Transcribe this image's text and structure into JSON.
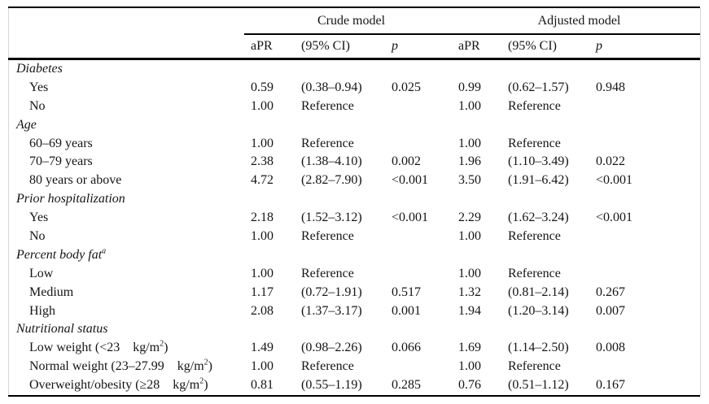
{
  "table": {
    "group_headers": {
      "crude": "Crude model",
      "adjusted": "Adjusted model"
    },
    "col_headers": {
      "apr": "aPR",
      "ci": "(95% CI)",
      "p": "p"
    },
    "rows": [
      {
        "type": "section",
        "pre": "Diabetes",
        "sup": "",
        "post": "",
        "crude_apr": "",
        "crude_ci": "",
        "crude_p": "",
        "adj_apr": "",
        "adj_ci": "",
        "adj_p": ""
      },
      {
        "type": "item",
        "pre": "Yes",
        "sup": "",
        "post": "",
        "crude_apr": "0.59",
        "crude_ci": "(0.38–0.94)",
        "crude_p": "0.025",
        "adj_apr": "0.99",
        "adj_ci": "(0.62–1.57)",
        "adj_p": "0.948"
      },
      {
        "type": "item",
        "pre": "No",
        "sup": "",
        "post": "",
        "crude_apr": "1.00",
        "crude_ci": "Reference",
        "crude_p": "",
        "adj_apr": "1.00",
        "adj_ci": "Reference",
        "adj_p": ""
      },
      {
        "type": "section",
        "pre": "Age",
        "sup": "",
        "post": "",
        "crude_apr": "",
        "crude_ci": "",
        "crude_p": "",
        "adj_apr": "",
        "adj_ci": "",
        "adj_p": ""
      },
      {
        "type": "item",
        "pre": "60–69 years",
        "sup": "",
        "post": "",
        "crude_apr": "1.00",
        "crude_ci": "Reference",
        "crude_p": "",
        "adj_apr": "1.00",
        "adj_ci": "Reference",
        "adj_p": ""
      },
      {
        "type": "item",
        "pre": "70–79 years",
        "sup": "",
        "post": "",
        "crude_apr": "2.38",
        "crude_ci": "(1.38–4.10)",
        "crude_p": "0.002",
        "adj_apr": "1.96",
        "adj_ci": "(1.10–3.49)",
        "adj_p": "0.022"
      },
      {
        "type": "item",
        "pre": "80 years or above",
        "sup": "",
        "post": "",
        "crude_apr": "4.72",
        "crude_ci": "(2.82–7.90)",
        "crude_p": "<0.001",
        "adj_apr": "3.50",
        "adj_ci": "(1.91–6.42)",
        "adj_p": "<0.001"
      },
      {
        "type": "section",
        "pre": "Prior hospitalization",
        "sup": "",
        "post": "",
        "crude_apr": "",
        "crude_ci": "",
        "crude_p": "",
        "adj_apr": "",
        "adj_ci": "",
        "adj_p": ""
      },
      {
        "type": "item",
        "pre": "Yes",
        "sup": "",
        "post": "",
        "crude_apr": "2.18",
        "crude_ci": "(1.52–3.12)",
        "crude_p": "<0.001",
        "adj_apr": "2.29",
        "adj_ci": "(1.62–3.24)",
        "adj_p": "<0.001"
      },
      {
        "type": "item",
        "pre": "No",
        "sup": "",
        "post": "",
        "crude_apr": "1.00",
        "crude_ci": "Reference",
        "crude_p": "",
        "adj_apr": "1.00",
        "adj_ci": "Reference",
        "adj_p": ""
      },
      {
        "type": "section",
        "pre": "Percent body fat",
        "sup": "a",
        "post": "",
        "crude_apr": "",
        "crude_ci": "",
        "crude_p": "",
        "adj_apr": "",
        "adj_ci": "",
        "adj_p": ""
      },
      {
        "type": "item",
        "pre": "Low",
        "sup": "",
        "post": "",
        "crude_apr": "1.00",
        "crude_ci": "Reference",
        "crude_p": "",
        "adj_apr": "1.00",
        "adj_ci": "Reference",
        "adj_p": ""
      },
      {
        "type": "item",
        "pre": "Medium",
        "sup": "",
        "post": "",
        "crude_apr": "1.17",
        "crude_ci": "(0.72–1.91)",
        "crude_p": "0.517",
        "adj_apr": "1.32",
        "adj_ci": "(0.81–2.14)",
        "adj_p": "0.267"
      },
      {
        "type": "item",
        "pre": "High",
        "sup": "",
        "post": "",
        "crude_apr": "2.08",
        "crude_ci": "(1.37–3.17)",
        "crude_p": "0.001",
        "adj_apr": "1.94",
        "adj_ci": "(1.20–3.14)",
        "adj_p": "0.007"
      },
      {
        "type": "section",
        "pre": "Nutritional status",
        "sup": "",
        "post": "",
        "crude_apr": "",
        "crude_ci": "",
        "crude_p": "",
        "adj_apr": "",
        "adj_ci": "",
        "adj_p": ""
      },
      {
        "type": "item",
        "pre": "Low weight (<23    kg/m",
        "sup": "2",
        "post": ")",
        "crude_apr": "1.49",
        "crude_ci": "(0.98–2.26)",
        "crude_p": "0.066",
        "adj_apr": "1.69",
        "adj_ci": "(1.14–2.50)",
        "adj_p": "0.008"
      },
      {
        "type": "item",
        "pre": "Normal weight (23–27.99    kg/m",
        "sup": "2",
        "post": ")",
        "crude_apr": "1.00",
        "crude_ci": "Reference",
        "crude_p": "",
        "adj_apr": "1.00",
        "adj_ci": "Reference",
        "adj_p": ""
      },
      {
        "type": "item",
        "pre": "Overweight/obesity (≥28    kg/m",
        "sup": "2",
        "post": ")",
        "crude_apr": "0.81",
        "crude_ci": "(0.55–1.19)",
        "crude_p": "0.285",
        "adj_apr": "0.76",
        "adj_ci": "(0.51–1.12)",
        "adj_p": "0.167"
      }
    ]
  }
}
